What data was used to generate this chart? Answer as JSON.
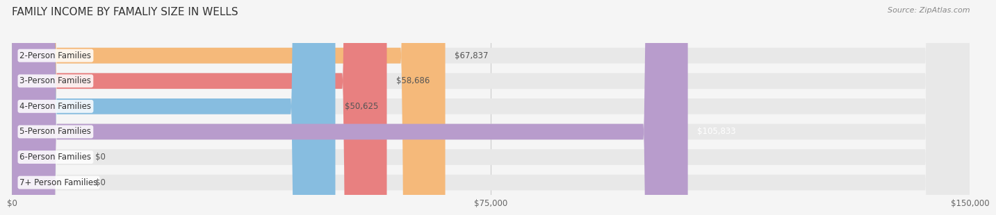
{
  "title": "FAMILY INCOME BY FAMALIY SIZE IN WELLS",
  "source": "Source: ZipAtlas.com",
  "categories": [
    "2-Person Families",
    "3-Person Families",
    "4-Person Families",
    "5-Person Families",
    "6-Person Families",
    "7+ Person Families"
  ],
  "values": [
    67837,
    58686,
    50625,
    105833,
    0,
    0
  ],
  "bar_colors": [
    "#f5b97a",
    "#e88080",
    "#87bde0",
    "#b89ccc",
    "#6eccc4",
    "#c0bde0"
  ],
  "value_labels": [
    "$67,837",
    "$58,686",
    "$50,625",
    "$105,833",
    "$0",
    "$0"
  ],
  "value_label_colors": [
    "#555555",
    "#555555",
    "#555555",
    "#ffffff",
    "#555555",
    "#555555"
  ],
  "xlim": [
    0,
    150000
  ],
  "xticks": [
    0,
    75000,
    150000
  ],
  "xtick_labels": [
    "$0",
    "$75,000",
    "$150,000"
  ],
  "background_color": "#f5f5f5",
  "bar_background": "#e8e8e8",
  "bar_height": 0.62,
  "title_fontsize": 11,
  "label_fontsize": 8.5,
  "value_fontsize": 8.5,
  "tick_fontsize": 8.5
}
